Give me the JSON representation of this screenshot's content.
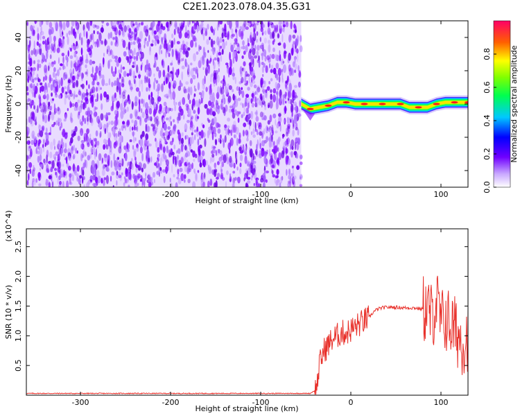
{
  "title": "C2E1.2023.078.04.35.G31",
  "chart_data": [
    {
      "type": "heatmap",
      "xlabel": "Height of straight line (km)",
      "ylabel": "Frequency (Hz)",
      "xlim": [
        -360,
        130
      ],
      "ylim": [
        -50,
        50
      ],
      "xticks": [
        -300,
        -200,
        -100,
        0,
        100
      ],
      "yticks": [
        -40,
        -20,
        0,
        20,
        40
      ],
      "colorbar": {
        "label": "Normalized spectral amplitude",
        "range": [
          0,
          1
        ],
        "ticks": [
          "0.0",
          "0.2",
          "0.4",
          "0.6",
          "0.8"
        ]
      },
      "noise_region_x": [
        -360,
        -55
      ],
      "signal_track": {
        "x": [
          -55,
          -45,
          -35,
          -25,
          -15,
          -5,
          5,
          15,
          25,
          35,
          45,
          55,
          65,
          75,
          85,
          95,
          105,
          115,
          125,
          130
        ],
        "freq": [
          0,
          -3,
          -2,
          -1,
          1,
          1,
          0,
          0,
          0,
          0,
          0,
          0,
          -2,
          -2,
          -2,
          0,
          1,
          1,
          1,
          1
        ]
      },
      "colors": {
        "noise": "#7b00ff",
        "track_core": "#ff1a1a",
        "track_edge": "#00c8ff"
      }
    },
    {
      "type": "line",
      "xlabel": "Height of straight line (km)",
      "ylabel": "SNR (10 * v/v)",
      "y_multiplier": "(x10^4)",
      "xlim": [
        -360,
        130
      ],
      "ylim": [
        0,
        2.8
      ],
      "xticks": [
        -300,
        -200,
        -100,
        0,
        100
      ],
      "yticks": [
        "0.5",
        "1.0",
        "1.5",
        "2.0",
        "2.5"
      ],
      "series": [
        {
          "color": "#e8302a",
          "x": [
            -360,
            -300,
            -200,
            -100,
            -45,
            -38,
            -35,
            -30,
            -25,
            -20,
            -15,
            -10,
            -5,
            0,
            5,
            10,
            15,
            20,
            25,
            30,
            35,
            40,
            50,
            60,
            70,
            80,
            85,
            90,
            95,
            100,
            105,
            110,
            115,
            120,
            125,
            130
          ],
          "values": [
            0.03,
            0.03,
            0.03,
            0.03,
            0.03,
            0.1,
            0.5,
            0.75,
            0.85,
            0.95,
            1.0,
            1.05,
            1.05,
            1.1,
            1.15,
            1.2,
            1.25,
            1.3,
            1.4,
            1.45,
            1.47,
            1.48,
            1.48,
            1.47,
            1.47,
            1.45,
            1.45,
            1.3,
            1.6,
            1.2,
            1.3,
            1.2,
            1.1,
            1.0,
            0.9,
            1.0
          ]
        }
      ]
    }
  ]
}
